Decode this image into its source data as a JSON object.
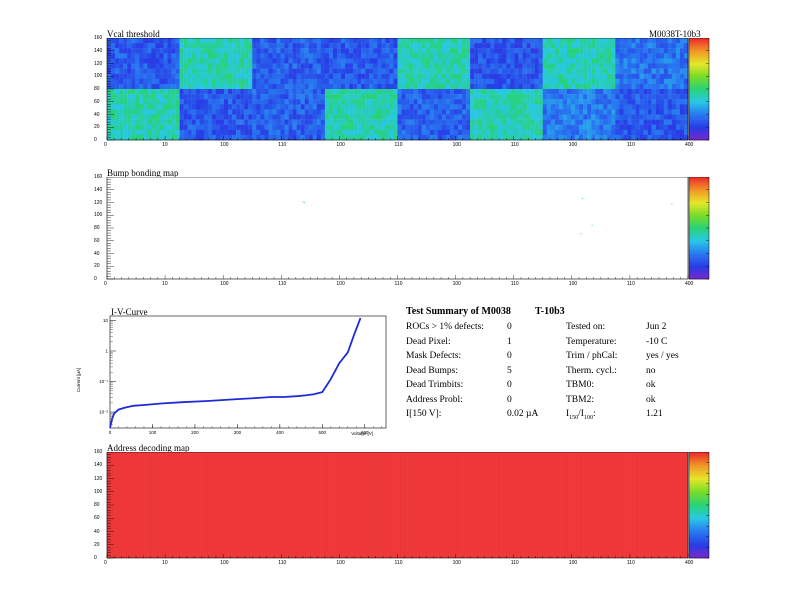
{
  "vcal": {
    "title": "Vcal threshold",
    "module_id": "M0038T-10b3",
    "x_ticks": [
      "0",
      "10",
      "100",
      "110",
      "100",
      "110",
      "100",
      "110",
      "100",
      "110",
      "400"
    ],
    "y_ticks": [
      "0",
      "20",
      "40",
      "60",
      "80",
      "100",
      "120",
      "140",
      "160"
    ],
    "z_ticks": [
      "80",
      "100",
      "120",
      "140",
      "160",
      "180",
      "200",
      "220",
      "240"
    ]
  },
  "bump": {
    "title": "Bump bonding map",
    "x_ticks": [
      "0",
      "10",
      "100",
      "110",
      "100",
      "110",
      "100",
      "110",
      "100",
      "110",
      "400"
    ],
    "y_ticks": [
      "0",
      "20",
      "40",
      "60",
      "80",
      "100",
      "120",
      "140",
      "160"
    ],
    "z_ticks": [
      "-2",
      "-1.5",
      "-1",
      "-0.5",
      "0",
      "0.5",
      "1",
      "1.5",
      "2"
    ]
  },
  "iv": {
    "title": "I-V-Curve",
    "ylabel": "Current [µA]",
    "xlabel": "Voltage [V]",
    "x_ticks": [
      "0",
      "100",
      "200",
      "300",
      "400",
      "500",
      "600"
    ],
    "y_ticks": [
      "10⁻²",
      "10⁻¹",
      "1",
      "10"
    ]
  },
  "summary": {
    "title": "Test Summary of M0038",
    "title_suffix": "T-10b3",
    "left": [
      {
        "label": "ROCs > 1% defects:",
        "value": "0"
      },
      {
        "label": "Dead Pixel:",
        "value": "1"
      },
      {
        "label": "Mask Defects:",
        "value": "0"
      },
      {
        "label": "Dead Bumps:",
        "value": "5"
      },
      {
        "label": "Dead Trimbits:",
        "value": "0"
      },
      {
        "label": "Address Probl:",
        "value": "0"
      },
      {
        "label": "I[150 V]:",
        "value": "0.02 µA"
      }
    ],
    "right": [
      {
        "label": "Tested on:",
        "value": "Jun 2"
      },
      {
        "label": "Temperature:",
        "value": "-10 C"
      },
      {
        "label": "Trim / phCal:",
        "value": "yes / yes"
      },
      {
        "label": "Therm. cycl.:",
        "value": "no"
      },
      {
        "label": "TBM0:",
        "value": "ok"
      },
      {
        "label": "TBM2:",
        "value": "ok"
      },
      {
        "label": "I150/I100:",
        "value": "1.21"
      }
    ]
  },
  "addr": {
    "title": "Address decoding map",
    "x_ticks": [
      "0",
      "10",
      "100",
      "110",
      "100",
      "110",
      "100",
      "110",
      "100",
      "110",
      "400"
    ],
    "y_ticks": [
      "0",
      "20",
      "40",
      "60",
      "80",
      "100",
      "120",
      "140",
      "160"
    ],
    "z_ticks": [
      "0",
      "0.1",
      "0.2",
      "0.3",
      "0.4",
      "0.5",
      "0.6",
      "0.7",
      "0.8",
      "0.9",
      "1"
    ]
  },
  "chart_data": [
    {
      "type": "heatmap",
      "title": "Vcal threshold",
      "xlim": [
        0,
        416
      ],
      "ylim": [
        0,
        160
      ],
      "zlim": [
        80,
        240
      ],
      "note_blocks": "16 ROC blocks, 2 rows x 8 columns",
      "roc_mean": [
        [
          110,
          150,
          112,
          110,
          150,
          108,
          150,
          118
        ],
        [
          150,
          110,
          112,
          150,
          112,
          150,
          120,
          110
        ]
      ]
    },
    {
      "type": "heatmap",
      "title": "Bump bonding map",
      "xlim": [
        0,
        416
      ],
      "ylim": [
        0,
        160
      ],
      "zlim": [
        -2,
        2
      ],
      "points": [
        {
          "x": 140,
          "y": 122
        },
        {
          "x": 141,
          "y": 121
        },
        {
          "x": 340,
          "y": 127
        },
        {
          "x": 339,
          "y": 72
        },
        {
          "x": 347,
          "y": 85
        },
        {
          "x": 404,
          "y": 118
        }
      ]
    },
    {
      "type": "line",
      "title": "I-V-Curve",
      "xlabel": "Voltage [V]",
      "ylabel": "Current [µA]",
      "xlim": [
        0,
        650
      ],
      "ylim": [
        0.003,
        14
      ],
      "log_y": true,
      "x": [
        0,
        5,
        10,
        20,
        35,
        55,
        80,
        120,
        170,
        230,
        290,
        350,
        380,
        410,
        440,
        460,
        480,
        500,
        520,
        540,
        560,
        575,
        590
      ],
      "values": [
        0.003,
        0.006,
        0.009,
        0.012,
        0.014,
        0.016,
        0.017,
        0.019,
        0.021,
        0.023,
        0.026,
        0.029,
        0.031,
        0.031,
        0.033,
        0.035,
        0.038,
        0.045,
        0.12,
        0.4,
        0.9,
        3.5,
        12
      ]
    },
    {
      "type": "heatmap",
      "title": "Address decoding map",
      "xlim": [
        0,
        416
      ],
      "ylim": [
        0,
        160
      ],
      "zlim": [
        0,
        1
      ],
      "uniform_value": 1
    }
  ]
}
